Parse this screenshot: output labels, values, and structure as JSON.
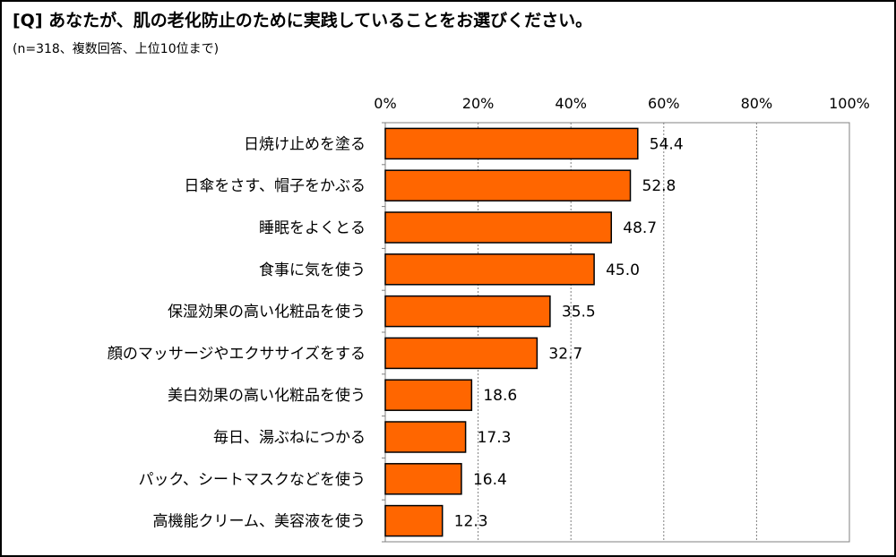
{
  "header": {
    "title": "[Q] あなたが、肌の老化防止のために実践していることをお選びください。",
    "subtitle": "(n=318、複数回答、上位10位まで)"
  },
  "colors": {
    "bar_fill": "#ff6600",
    "bar_stroke": "#000000",
    "grid": "#808080"
  },
  "chart_data": {
    "type": "bar",
    "orientation": "horizontal",
    "title": "[Q] あなたが、肌の老化防止のために実践していることをお選びください。",
    "subtitle": "(n=318、複数回答、上位10位まで)",
    "xlabel": "",
    "ylabel": "",
    "xlim": [
      0,
      100
    ],
    "x_ticks": [
      0,
      20,
      40,
      60,
      80,
      100
    ],
    "x_tick_labels": [
      "0%",
      "20%",
      "40%",
      "60%",
      "80%",
      "100%"
    ],
    "x_axis_position": "top",
    "grid": "vertical-dotted",
    "legend": "none",
    "categories": [
      "日焼け止めを塗る",
      "日傘をさす、帽子をかぶる",
      "睡眠をよくとる",
      "食事に気を使う",
      "保湿効果の高い化粧品を使う",
      "顔のマッサージやエクササイズをする",
      "美白効果の高い化粧品を使う",
      "毎日、湯ぶねにつかる",
      "パック、シートマスクなどを使う",
      "高機能クリーム、美容液を使う"
    ],
    "values": [
      54.4,
      52.8,
      48.7,
      45.0,
      35.5,
      32.7,
      18.6,
      17.3,
      16.4,
      12.3
    ],
    "value_labels": [
      "54.4",
      "52.8",
      "48.7",
      "45.0",
      "35.5",
      "32.7",
      "18.6",
      "17.3",
      "16.4",
      "12.3"
    ]
  }
}
